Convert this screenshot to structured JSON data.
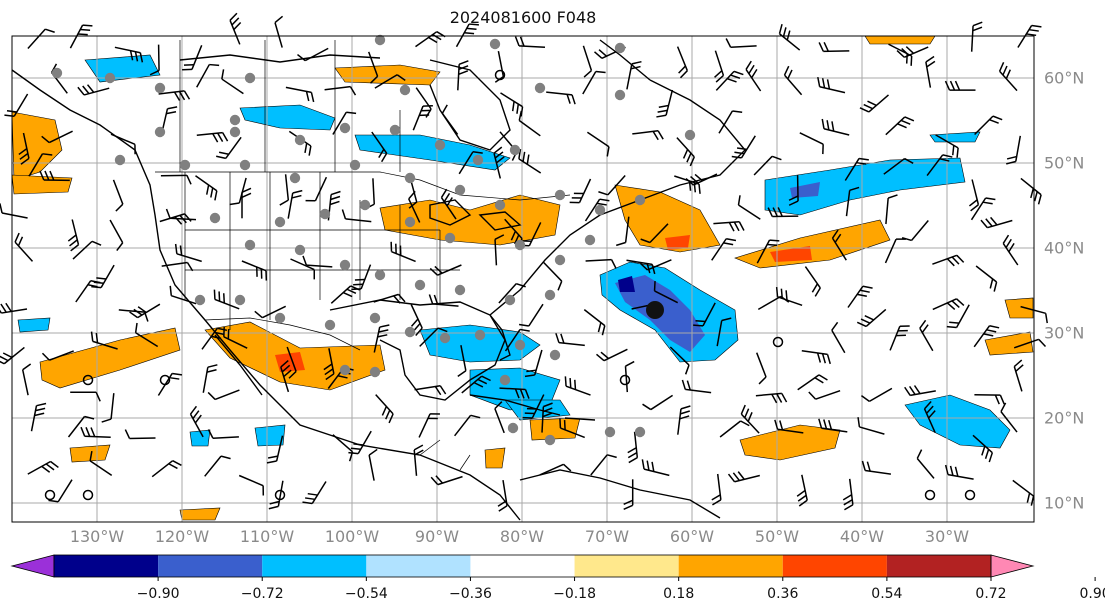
{
  "title": "2024081600 F048",
  "lon_labels": [
    "130°W",
    "120°W",
    "110°W",
    "100°W",
    "90°W",
    "80°W",
    "70°W",
    "60°W",
    "50°W",
    "40°W",
    "30°W"
  ],
  "lat_labels": [
    "60°N",
    "50°N",
    "40°N",
    "30°N",
    "20°N",
    "10°N"
  ],
  "colorbar": {
    "ticks": [
      "−0.90",
      "−0.72",
      "−0.54",
      "−0.36",
      "−0.18",
      "0.18",
      "0.36",
      "0.54",
      "0.72",
      "0.90"
    ],
    "colors": [
      "#9b30d9",
      "#00008b",
      "#3a5fcd",
      "#00bfff",
      "#b0e2ff",
      "#ffffff",
      "#ffe88c",
      "#ffa500",
      "#ff4500",
      "#b22222",
      "#ff88b4"
    ]
  },
  "colors": {
    "grid": "#a9a9a9",
    "coast": "#000000",
    "station": "#808080",
    "axis_text": "#8a8a8a"
  }
}
